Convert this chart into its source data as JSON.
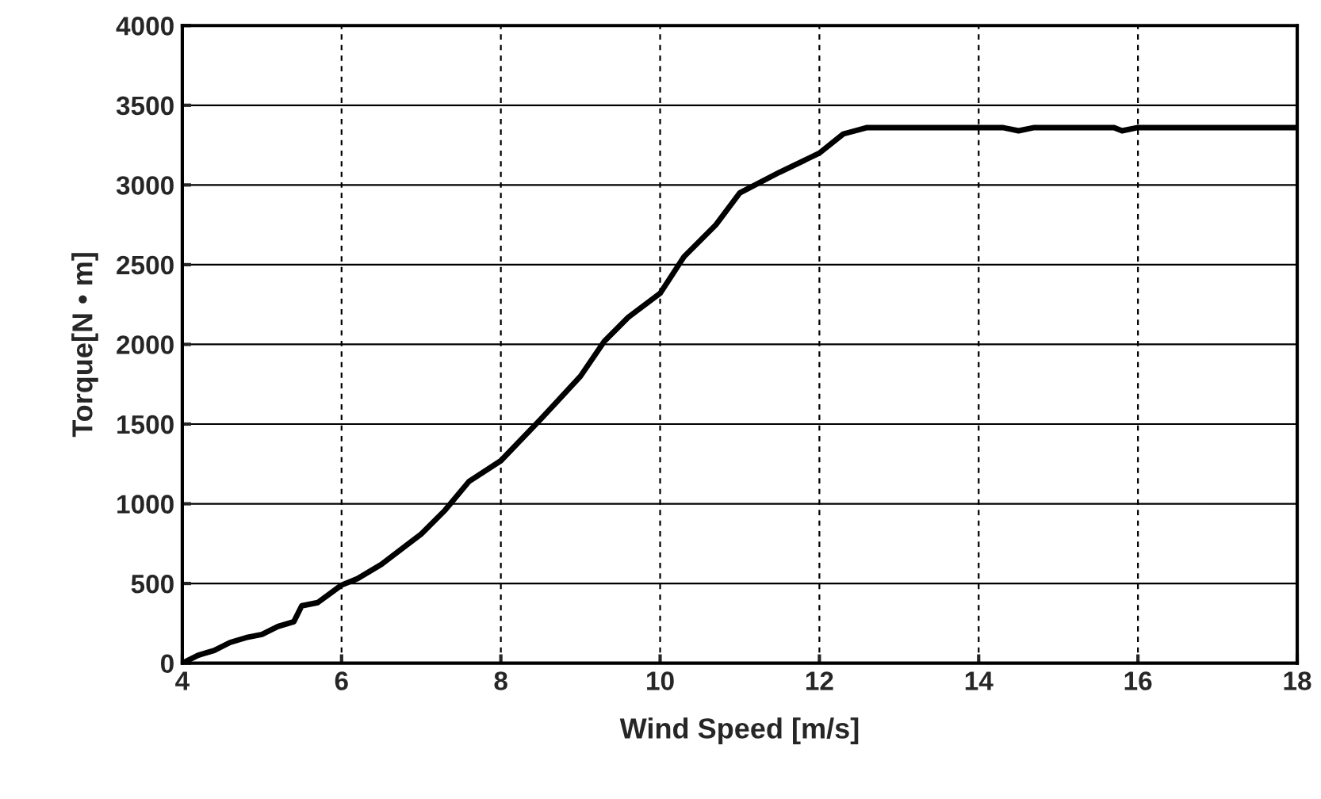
{
  "chart_data": {
    "type": "line",
    "xlabel": "Wind Speed [m/s]",
    "ylabel": "Torque[N • m]",
    "xlim": [
      4,
      18
    ],
    "xticks": [
      4,
      6,
      8,
      10,
      12,
      14,
      16,
      18
    ],
    "ylim": [
      0,
      4000
    ],
    "yticks": [
      0,
      500,
      1000,
      1500,
      2000,
      2500,
      3000,
      3500,
      4000
    ],
    "grid": true,
    "legend": false,
    "marker": "none",
    "line_style": "solid",
    "series": [
      {
        "color": "#000000",
        "x": [
          4.0,
          4.2,
          4.4,
          4.6,
          4.8,
          5.0,
          5.2,
          5.4,
          5.5,
          5.7,
          6.0,
          6.2,
          6.5,
          7.0,
          7.3,
          7.6,
          8.0,
          8.5,
          9.0,
          9.3,
          9.6,
          10.0,
          10.3,
          10.7,
          11.0,
          11.5,
          12.0,
          12.3,
          12.6,
          14.3,
          14.5,
          14.7,
          15.7,
          15.8,
          16.0,
          18.0
        ],
        "values": [
          0,
          50,
          80,
          130,
          160,
          180,
          230,
          260,
          360,
          380,
          490,
          530,
          620,
          810,
          960,
          1140,
          1270,
          1530,
          1800,
          2020,
          2170,
          2320,
          2550,
          2750,
          2950,
          3080,
          3200,
          3320,
          3360,
          3360,
          3340,
          3360,
          3360,
          3340,
          3360,
          3360
        ]
      }
    ]
  }
}
